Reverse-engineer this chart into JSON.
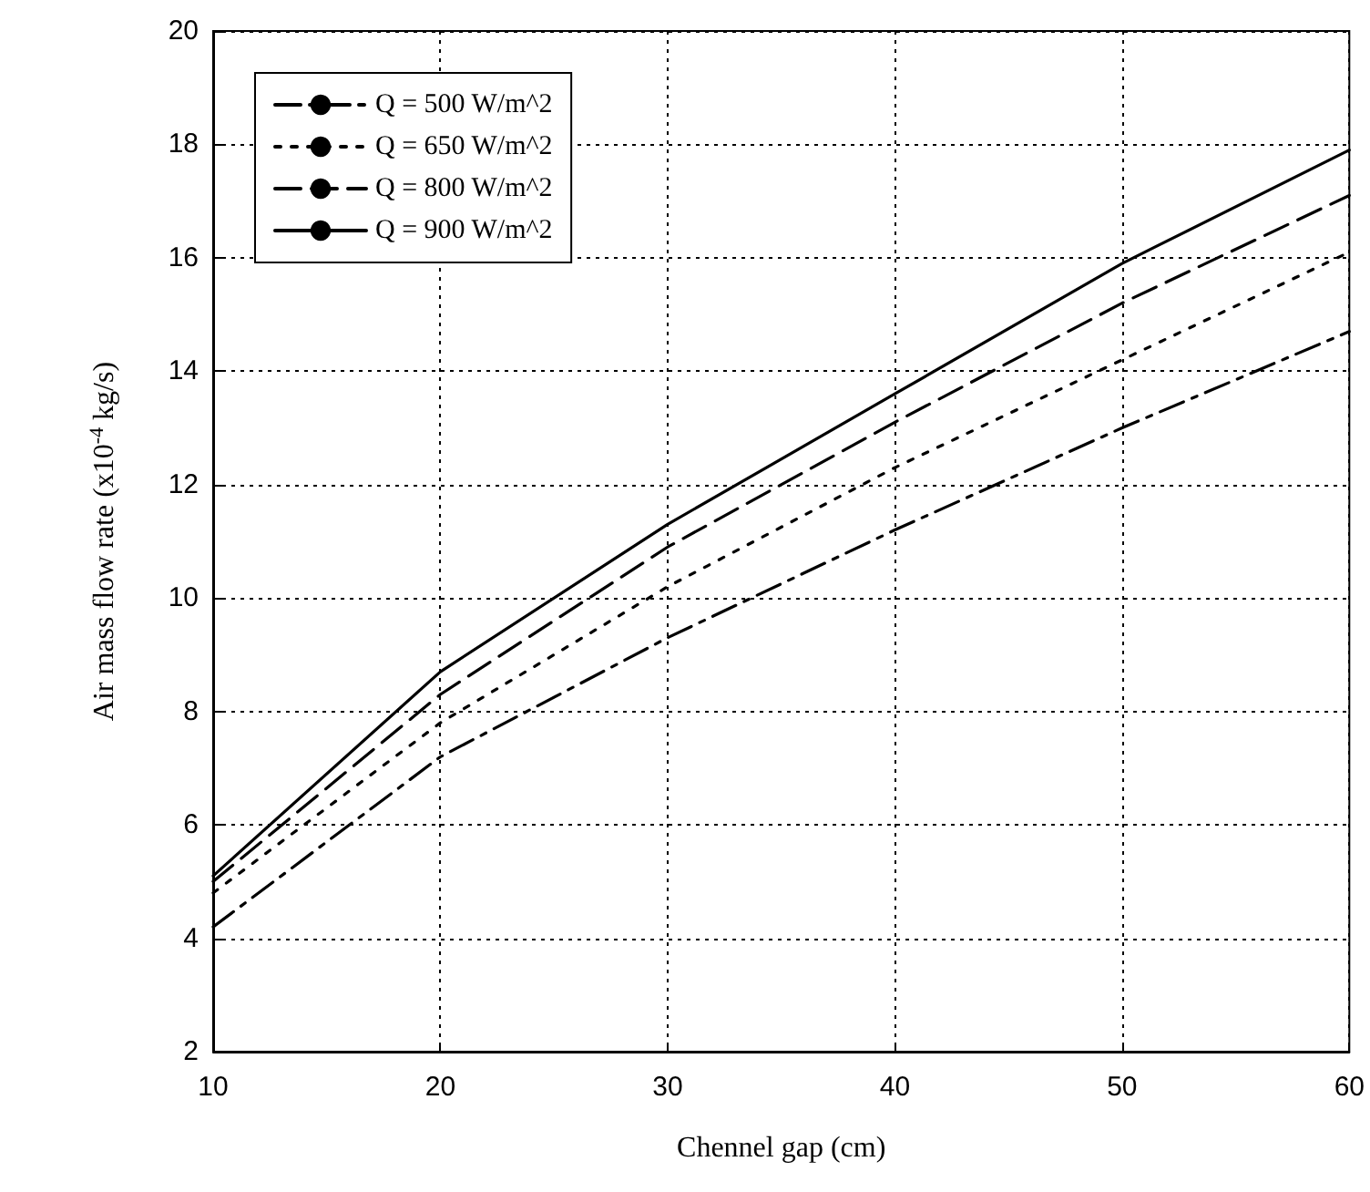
{
  "chart_data": {
    "type": "line",
    "xlabel": "Chennel gap (cm)",
    "ylabel": "Air mass flow rate (x10$^{-4}$ kg/s)",
    "x": [
      10,
      20,
      30,
      40,
      50,
      60
    ],
    "xlim": [
      10,
      60
    ],
    "xticks": [
      10,
      20,
      30,
      40,
      50,
      60
    ],
    "ylim": [
      2,
      20
    ],
    "yticks": [
      2,
      4,
      6,
      8,
      10,
      12,
      14,
      16,
      18,
      20
    ],
    "grid": true,
    "legend": "top left",
    "marker": "none",
    "series": [
      {
        "name": "Q = 500 W/m^2",
        "color": "#000000",
        "line_style": "dashdot",
        "values": [
          4.2,
          7.2,
          9.3,
          11.2,
          13.0,
          14.7
        ]
      },
      {
        "name": "Q = 650 W/m^2",
        "color": "#000000",
        "line_style": "dotted",
        "values": [
          4.8,
          7.8,
          10.2,
          12.3,
          14.2,
          16.1
        ]
      },
      {
        "name": "Q = 800 W/m^2",
        "color": "#000000",
        "line_style": "dashed",
        "values": [
          5.0,
          8.3,
          10.9,
          13.1,
          15.2,
          17.1
        ]
      },
      {
        "name": "Q = 900 W/m^2",
        "color": "#000000",
        "line_style": "solid",
        "values": [
          5.1,
          8.7,
          11.3,
          13.6,
          15.9,
          17.9
        ]
      }
    ]
  }
}
